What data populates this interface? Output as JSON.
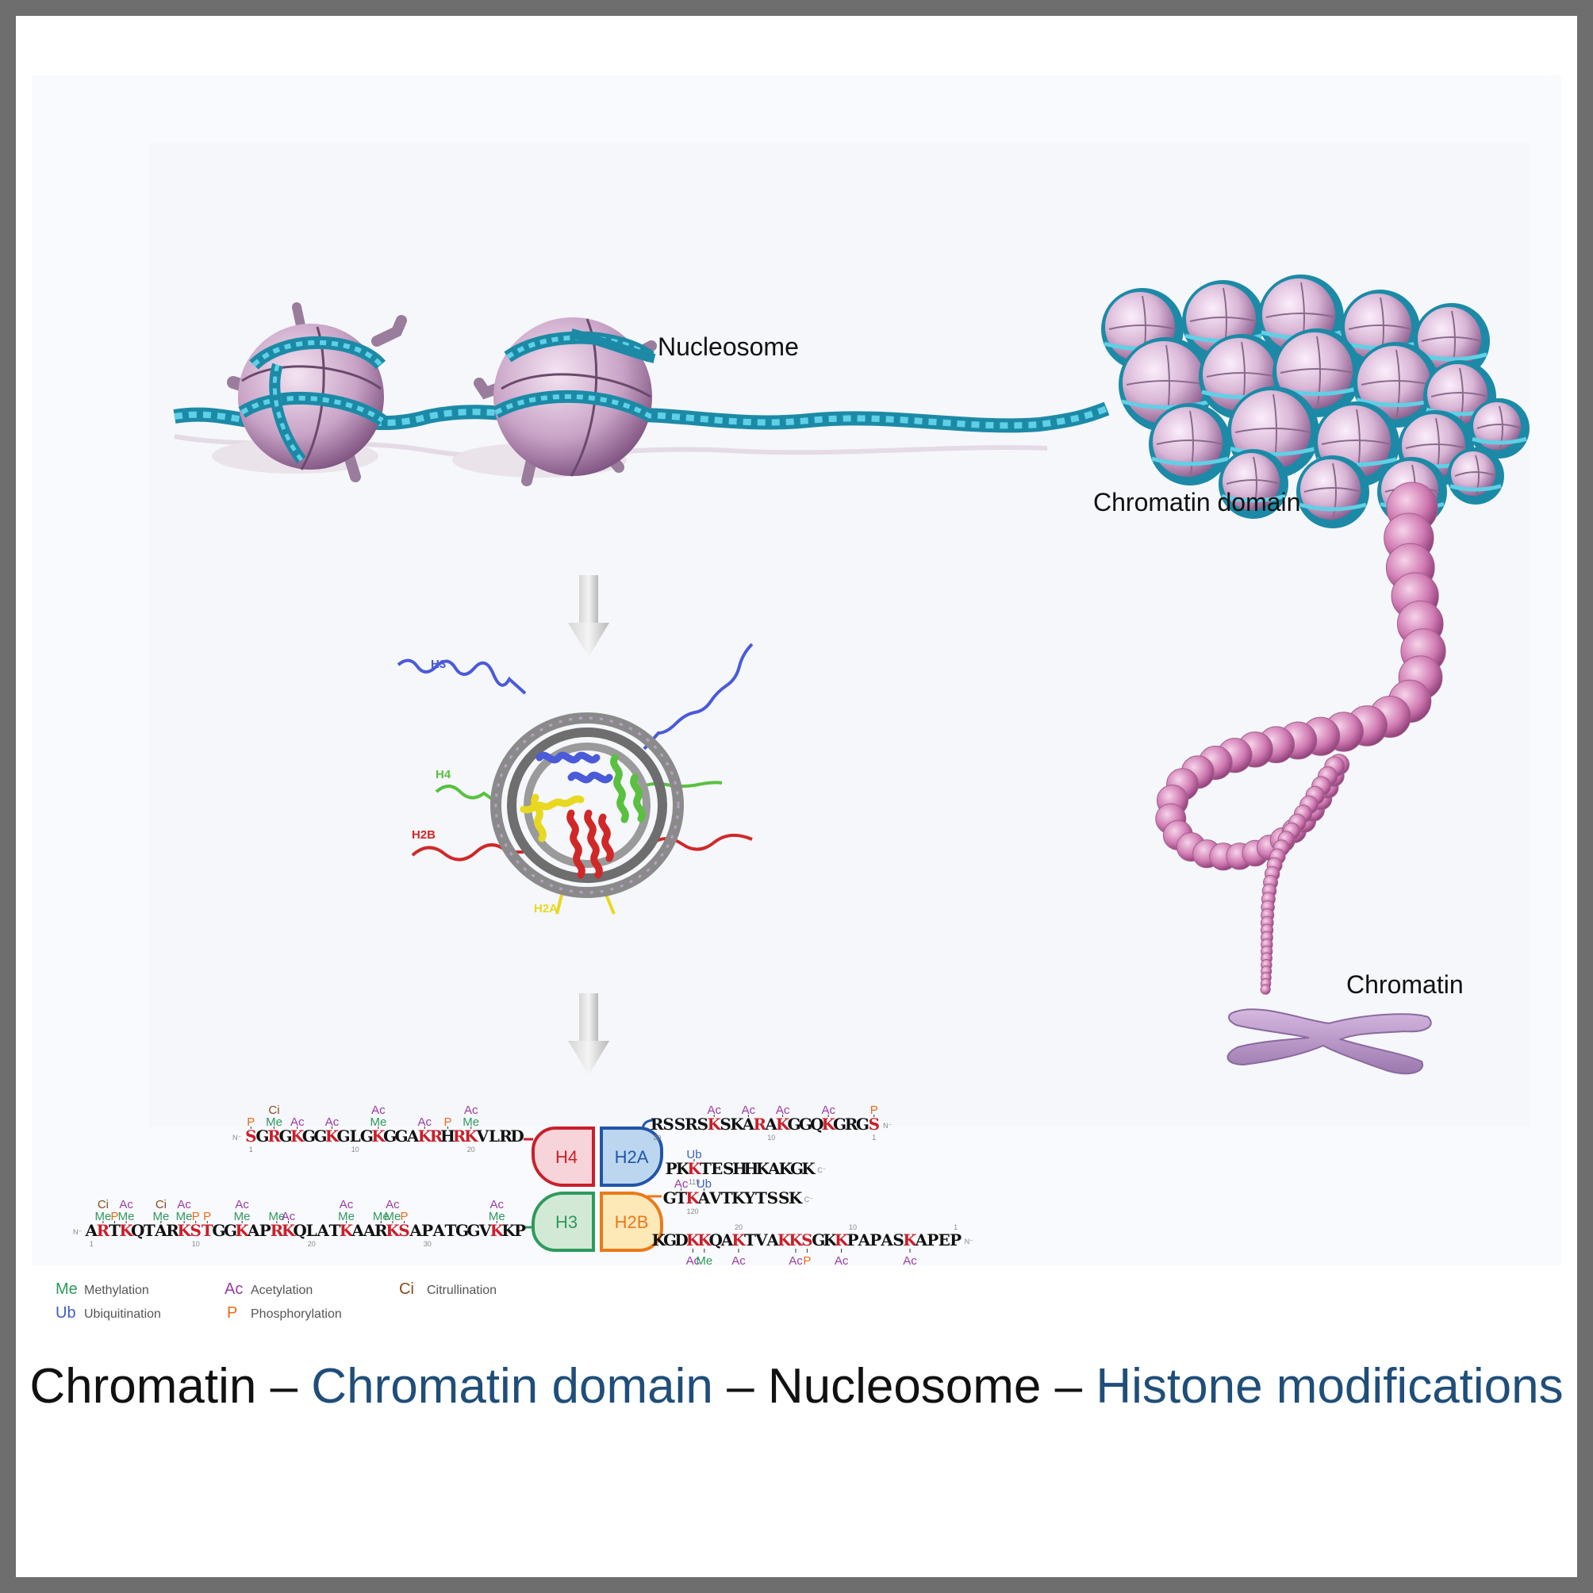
{
  "labels": {
    "nucleosome": "Nucleosome",
    "chromatin_domain": "Chromatin domain",
    "chromatin": "Chromatin"
  },
  "structure_tails": {
    "h3": "H3",
    "h4": "H4",
    "h2b": "H2B",
    "h2a": "H2A"
  },
  "core_boxes": {
    "h4": "H4",
    "h2a": "H2A",
    "h3": "H3",
    "h2b": "H2B"
  },
  "sequences": {
    "h4": {
      "nterm": "N⁻",
      "residues": "SGRGKGGKGLGKGGAKRHRKVLRD",
      "highlighted": [
        0,
        2,
        4,
        7,
        11,
        15,
        16,
        18,
        19
      ],
      "numbers": [
        {
          "n": "1",
          "i": 0
        },
        {
          "n": "10",
          "i": 9
        },
        {
          "n": "20",
          "i": 19
        }
      ],
      "mods": [
        {
          "i": 0,
          "row": 0,
          "t": "P",
          "k": "P"
        },
        {
          "i": 2,
          "row": 1,
          "t": "Ci",
          "k": "Ci"
        },
        {
          "i": 2,
          "row": 0,
          "t": "Me",
          "k": "Me"
        },
        {
          "i": 4,
          "row": 0,
          "t": "Ac",
          "k": "Ac"
        },
        {
          "i": 7,
          "row": 0,
          "t": "Ac",
          "k": "Ac"
        },
        {
          "i": 11,
          "row": 1,
          "t": "Ac",
          "k": "Ac"
        },
        {
          "i": 11,
          "row": 0,
          "t": "Me",
          "k": "Me"
        },
        {
          "i": 15,
          "row": 0,
          "t": "Ac",
          "k": "Ac"
        },
        {
          "i": 17,
          "row": 0,
          "t": "P",
          "k": "P"
        },
        {
          "i": 19,
          "row": 1,
          "t": "Ac",
          "k": "Ac"
        },
        {
          "i": 19,
          "row": 0,
          "t": "Me",
          "k": "Me"
        }
      ]
    },
    "h2a_n": {
      "cterm": "N⁻",
      "residues": "RSSRSKSKARAKGGQKGRGS",
      "highlighted": [
        5,
        9,
        11,
        15,
        19
      ],
      "numbers": [
        {
          "n": "20",
          "i": 0
        },
        {
          "n": "10",
          "i": 10
        },
        {
          "n": "1",
          "i": 19
        }
      ],
      "mods": [
        {
          "i": 5,
          "row": 0,
          "t": "Ac",
          "k": "Ac"
        },
        {
          "i": 8,
          "row": 0,
          "t": "Ac",
          "k": "Ac"
        },
        {
          "i": 11,
          "row": 0,
          "t": "Ac",
          "k": "Ac"
        },
        {
          "i": 15,
          "row": 0,
          "t": "Ac",
          "k": "Ac"
        },
        {
          "i": 19,
          "row": 0,
          "t": "P",
          "k": "P"
        }
      ]
    },
    "h2a_c": {
      "cterm": "C⁻",
      "residues": "PKKTESHHKAKGK",
      "highlighted": [
        2
      ],
      "numbers": [
        {
          "n": "119",
          "i": 2
        }
      ],
      "mods": [
        {
          "i": 2,
          "row": 0,
          "t": "Ub",
          "k": "Ub"
        }
      ]
    },
    "h2b_c": {
      "cterm": "C⁻",
      "residues": "GTKAVTKYTSSK",
      "highlighted": [
        2
      ],
      "numbers": [
        {
          "n": "120",
          "i": 2
        }
      ],
      "mods": [
        {
          "i": 1,
          "row": 0,
          "t": "Ac",
          "k": "Ac"
        },
        {
          "i": 3,
          "row": 0,
          "t": "Ub",
          "k": "Ub"
        }
      ]
    },
    "h3": {
      "nterm": "N⁻",
      "residues": "ARTKQTARKSTGGKAPRKQLATKAARKSAPATGGVKKP",
      "highlighted": [
        1,
        3,
        8,
        9,
        10,
        13,
        16,
        17,
        22,
        26,
        27,
        35
      ],
      "numbers": [
        {
          "n": "1",
          "i": 0
        },
        {
          "n": "10",
          "i": 9
        },
        {
          "n": "20",
          "i": 19
        },
        {
          "n": "30",
          "i": 29
        }
      ],
      "mods": [
        {
          "i": 1,
          "row": 1,
          "t": "Ci",
          "k": "Ci"
        },
        {
          "i": 1,
          "row": 0,
          "t": "Me",
          "k": "Me"
        },
        {
          "i": 2,
          "row": 0,
          "t": "P",
          "k": "P"
        },
        {
          "i": 3,
          "row": 1,
          "t": "Ac",
          "k": "Ac"
        },
        {
          "i": 3,
          "row": 0,
          "t": "Me",
          "k": "Me"
        },
        {
          "i": 6,
          "row": 1,
          "t": "Ci",
          "k": "Ci"
        },
        {
          "i": 6,
          "row": 0,
          "t": "Me",
          "k": "Me"
        },
        {
          "i": 8,
          "row": 1,
          "t": "Ac",
          "k": "Ac"
        },
        {
          "i": 8,
          "row": 0,
          "t": "Me",
          "k": "Me"
        },
        {
          "i": 9,
          "row": 0,
          "t": "P",
          "k": "P"
        },
        {
          "i": 10,
          "row": 0,
          "t": "P",
          "k": "P"
        },
        {
          "i": 13,
          "row": 1,
          "t": "Ac",
          "k": "Ac"
        },
        {
          "i": 13,
          "row": 0,
          "t": "Me",
          "k": "Me"
        },
        {
          "i": 16,
          "row": 0,
          "t": "Me",
          "k": "Me"
        },
        {
          "i": 17,
          "row": 0,
          "t": "Ac",
          "k": "Ac"
        },
        {
          "i": 22,
          "row": 1,
          "t": "Ac",
          "k": "Ac"
        },
        {
          "i": 22,
          "row": 0,
          "t": "Me",
          "k": "Me"
        },
        {
          "i": 25,
          "row": 0,
          "t": "Me",
          "k": "Me"
        },
        {
          "i": 26,
          "row": 1,
          "t": "Ac",
          "k": "Ac"
        },
        {
          "i": 26,
          "row": 0,
          "t": "Me",
          "k": "Me"
        },
        {
          "i": 27,
          "row": 0,
          "t": "P",
          "k": "P"
        },
        {
          "i": 35,
          "row": 1,
          "t": "Ac",
          "k": "Ac"
        },
        {
          "i": 35,
          "row": 0,
          "t": "Me",
          "k": "Me"
        }
      ]
    },
    "h2b_n": {
      "cterm": "N⁻",
      "residues": "KGDKKQAKTVAKKSGKKPAPASKAPEP",
      "highlighted": [
        3,
        4,
        7,
        11,
        12,
        13,
        16,
        22
      ],
      "numbers": [
        {
          "n": "20",
          "i": 7
        },
        {
          "n": "10",
          "i": 17
        },
        {
          "n": "1",
          "i": 26
        }
      ],
      "mods": [
        {
          "i": 3,
          "row": 0,
          "t": "Ac",
          "k": "Ac"
        },
        {
          "i": 4,
          "row": 0,
          "t": "Me",
          "k": "Me"
        },
        {
          "i": 7,
          "row": 0,
          "t": "Ac",
          "k": "Ac"
        },
        {
          "i": 12,
          "row": 0,
          "t": "Ac",
          "k": "Ac"
        },
        {
          "i": 13,
          "row": 0,
          "t": "P",
          "k": "P"
        },
        {
          "i": 16,
          "row": 0,
          "t": "Ac",
          "k": "Ac"
        },
        {
          "i": 22,
          "row": 0,
          "t": "Ac",
          "k": "Ac"
        }
      ]
    }
  },
  "legend": [
    {
      "abbr": "Me",
      "text": "Methylation",
      "color": "#2e9a5c"
    },
    {
      "abbr": "Ac",
      "text": "Acetylation",
      "color": "#9a3aa8"
    },
    {
      "abbr": "Ci",
      "text": "Citrullination",
      "color": "#8a4a1a"
    },
    {
      "abbr": "Ub",
      "text": "Ubiquitination",
      "color": "#3a5fc0"
    },
    {
      "abbr": "P",
      "text": "Phosphorylation",
      "color": "#ea6a1a"
    }
  ],
  "caption": {
    "part1": "Chromatin",
    "sep1": " – ",
    "part2": "Chromatin domain",
    "sep2": " – ",
    "part3": "Nucleosome",
    "sep3": " – ",
    "part4": "Histone modifications"
  },
  "colors": {
    "modification_red": "#c8202a",
    "h3_tail": "#4a5ad8",
    "h4_tail": "#5ac040",
    "h2b_tail": "#d02828",
    "h2a_tail": "#e8d820",
    "caption_blue": "#1f4e79",
    "dna_cyan": "#2aa8c4",
    "histone_pink": "#d8b8d8"
  }
}
